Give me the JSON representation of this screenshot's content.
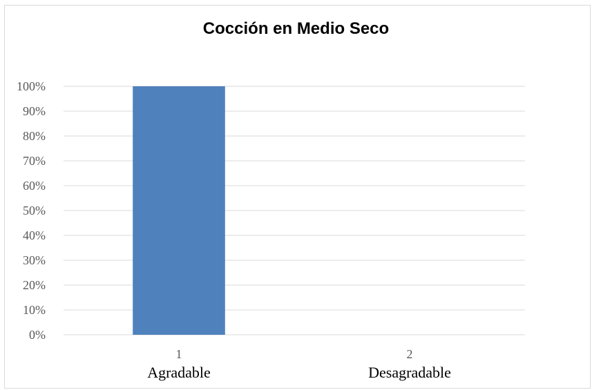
{
  "chart_data": {
    "type": "bar",
    "title": "Cocción en Medio Seco",
    "categories": [
      "1",
      "2"
    ],
    "category_labels": [
      "Agradable",
      "Desagradable"
    ],
    "series": [
      {
        "values": [
          100,
          0
        ]
      }
    ],
    "ylim": [
      0,
      100
    ],
    "yticks": [
      "0%",
      "10%",
      "20%",
      "30%",
      "40%",
      "50%",
      "60%",
      "70%",
      "80%",
      "90%",
      "100%"
    ],
    "grid": true,
    "legend": "none",
    "bar_color": "#4f81bd",
    "grid_color": "#d9d9d9"
  }
}
